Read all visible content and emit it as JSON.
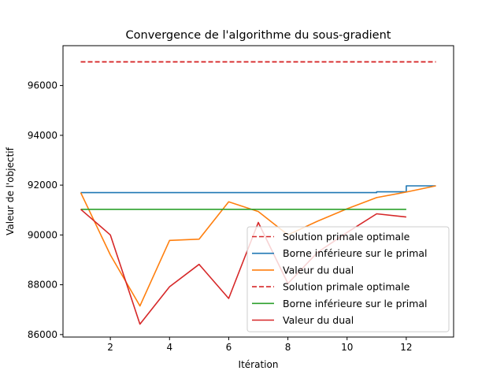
{
  "chart_data": {
    "type": "line",
    "title": "Convergence de l'algorithme du sous-gradient",
    "xlabel": "Itération",
    "ylabel": "Valeur de l'objectif",
    "xlim": [
      0.4,
      13.6
    ],
    "ylim": [
      85900,
      97600
    ],
    "xticks": [
      2,
      4,
      6,
      8,
      10,
      12
    ],
    "yticks": [
      86000,
      88000,
      90000,
      92000,
      94000,
      96000
    ],
    "xtick_labels": [
      "2",
      "4",
      "6",
      "8",
      "10",
      "12"
    ],
    "ytick_labels": [
      "86000",
      "88000",
      "90000",
      "92000",
      "94000",
      "96000"
    ],
    "grid": false,
    "legend_position": "lower-right",
    "series": [
      {
        "name": "Solution primale optimale",
        "color": "#d62728",
        "style": "dashed",
        "step": false,
        "x": [
          1,
          13
        ],
        "y": [
          96950,
          96950
        ]
      },
      {
        "name": "Borne inférieure sur le primal",
        "color": "#1f77b4",
        "style": "solid",
        "step": true,
        "x": [
          1,
          2,
          3,
          4,
          5,
          6,
          7,
          8,
          9,
          10,
          11,
          12,
          13
        ],
        "y": [
          91700,
          91700,
          91700,
          91700,
          91700,
          91700,
          91700,
          91700,
          91700,
          91700,
          91730,
          91970,
          91970
        ]
      },
      {
        "name": "Valeur du dual",
        "color": "#ff7f0e",
        "style": "solid",
        "step": false,
        "x": [
          1,
          2,
          3,
          4,
          5,
          6,
          7,
          8,
          9,
          10,
          11,
          12,
          13
        ],
        "y": [
          91700,
          89200,
          87150,
          89780,
          89830,
          91330,
          90940,
          90000,
          90550,
          91050,
          91500,
          91720,
          91970
        ]
      },
      {
        "name": "Solution primale optimale",
        "color": "#d62728",
        "style": "dashed",
        "step": false,
        "x": [
          1,
          13
        ],
        "y": [
          96950,
          96950
        ]
      },
      {
        "name": "Borne inférieure sur le primal",
        "color": "#2ca02c",
        "style": "solid",
        "step": false,
        "x": [
          1,
          12
        ],
        "y": [
          91030,
          91030
        ]
      },
      {
        "name": "Valeur du dual",
        "color": "#d62728",
        "style": "solid",
        "step": false,
        "x": [
          1,
          2,
          3,
          4,
          5,
          6,
          7,
          8,
          9,
          10,
          11,
          12
        ],
        "y": [
          91030,
          90000,
          86420,
          87920,
          88820,
          87450,
          90500,
          88050,
          89300,
          90100,
          90850,
          90720
        ]
      }
    ]
  }
}
